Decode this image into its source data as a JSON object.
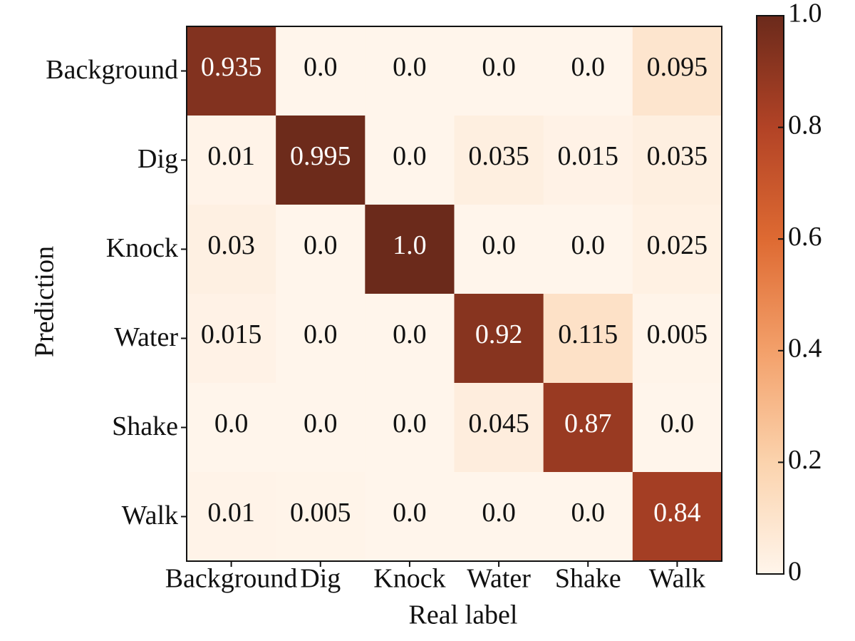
{
  "chart_data": {
    "type": "heatmap",
    "x_label": "Real label",
    "y_label": "Prediction",
    "categories": [
      "Background",
      "Dig",
      "Knock",
      "Water",
      "Shake",
      "Walk"
    ],
    "values": [
      [
        0.935,
        0,
        0,
        0,
        0,
        0.095
      ],
      [
        0.01,
        0.995,
        0,
        0.035,
        0.015,
        0.035
      ],
      [
        0.03,
        0,
        1,
        0,
        0,
        0.025
      ],
      [
        0.015,
        0,
        0,
        0.92,
        0.115,
        0.005
      ],
      [
        0,
        0,
        0,
        0.045,
        0.87,
        0
      ],
      [
        0.01,
        0.005,
        0,
        0,
        0,
        0.84
      ]
    ],
    "value_labels": [
      [
        "0.935",
        "0.0",
        "0.0",
        "0.0",
        "0.0",
        "0.095"
      ],
      [
        "0.01",
        "0.995",
        "0.0",
        "0.035",
        "0.015",
        "0.035"
      ],
      [
        "0.03",
        "0.0",
        "1.0",
        "0.0",
        "0.0",
        "0.025"
      ],
      [
        "0.015",
        "0.0",
        "0.0",
        "0.92",
        "0.115",
        "0.005"
      ],
      [
        "0.0",
        "0.0",
        "0.0",
        "0.045",
        "0.87",
        "0.0"
      ],
      [
        "0.01",
        "0.005",
        "0.0",
        "0.0",
        "0.0",
        "0.84"
      ]
    ],
    "colormap": [
      "#fff5eb",
      "#fbd3ad",
      "#f3a06a",
      "#de6a32",
      "#b24326",
      "#6b2a1b"
    ],
    "zlim": [
      0,
      1
    ],
    "zticks": [
      0,
      0.2,
      0.4,
      0.6,
      0.8,
      {
        "value": 1,
        "label": "1.0"
      }
    ]
  }
}
